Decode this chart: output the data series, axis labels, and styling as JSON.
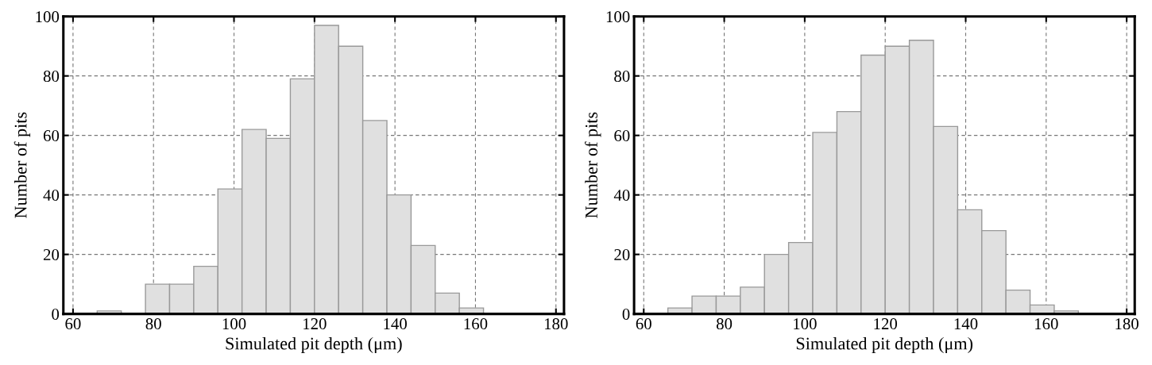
{
  "chart_data": [
    {
      "type": "histogram",
      "xlabel": "Simulated pit depth (μm)",
      "ylabel": "Number of pits",
      "color": "#e0e0e0",
      "bins": [
        66,
        72,
        78,
        84,
        90,
        96,
        102,
        108,
        114,
        120,
        126,
        132,
        138,
        144,
        150,
        156,
        162
      ],
      "values": [
        1,
        0,
        10,
        10,
        16,
        42,
        62,
        59,
        79,
        97,
        90,
        65,
        40,
        23,
        7,
        2
      ],
      "xlim": [
        57.6,
        182
      ],
      "xticks": [
        60,
        80,
        100,
        120,
        140,
        160,
        180
      ],
      "ylim": [
        0,
        100
      ],
      "yticks": [
        0,
        20,
        40,
        60,
        80,
        100
      ],
      "grid": true
    },
    {
      "type": "histogram",
      "xlabel": "Simulated pit depth (μm)",
      "ylabel": "Number of pits",
      "color": "#e0e0e0",
      "bins": [
        66,
        72,
        78,
        84,
        90,
        96,
        102,
        108,
        114,
        120,
        126,
        132,
        138,
        144,
        150,
        156,
        162,
        168
      ],
      "values": [
        2,
        6,
        6,
        9,
        20,
        24,
        61,
        68,
        87,
        90,
        92,
        63,
        35,
        28,
        8,
        3,
        1
      ],
      "xlim": [
        57.6,
        182
      ],
      "xticks": [
        60,
        80,
        100,
        120,
        140,
        160,
        180
      ],
      "ylim": [
        0,
        100
      ],
      "yticks": [
        0,
        20,
        40,
        60,
        80,
        100
      ],
      "grid": true
    }
  ]
}
